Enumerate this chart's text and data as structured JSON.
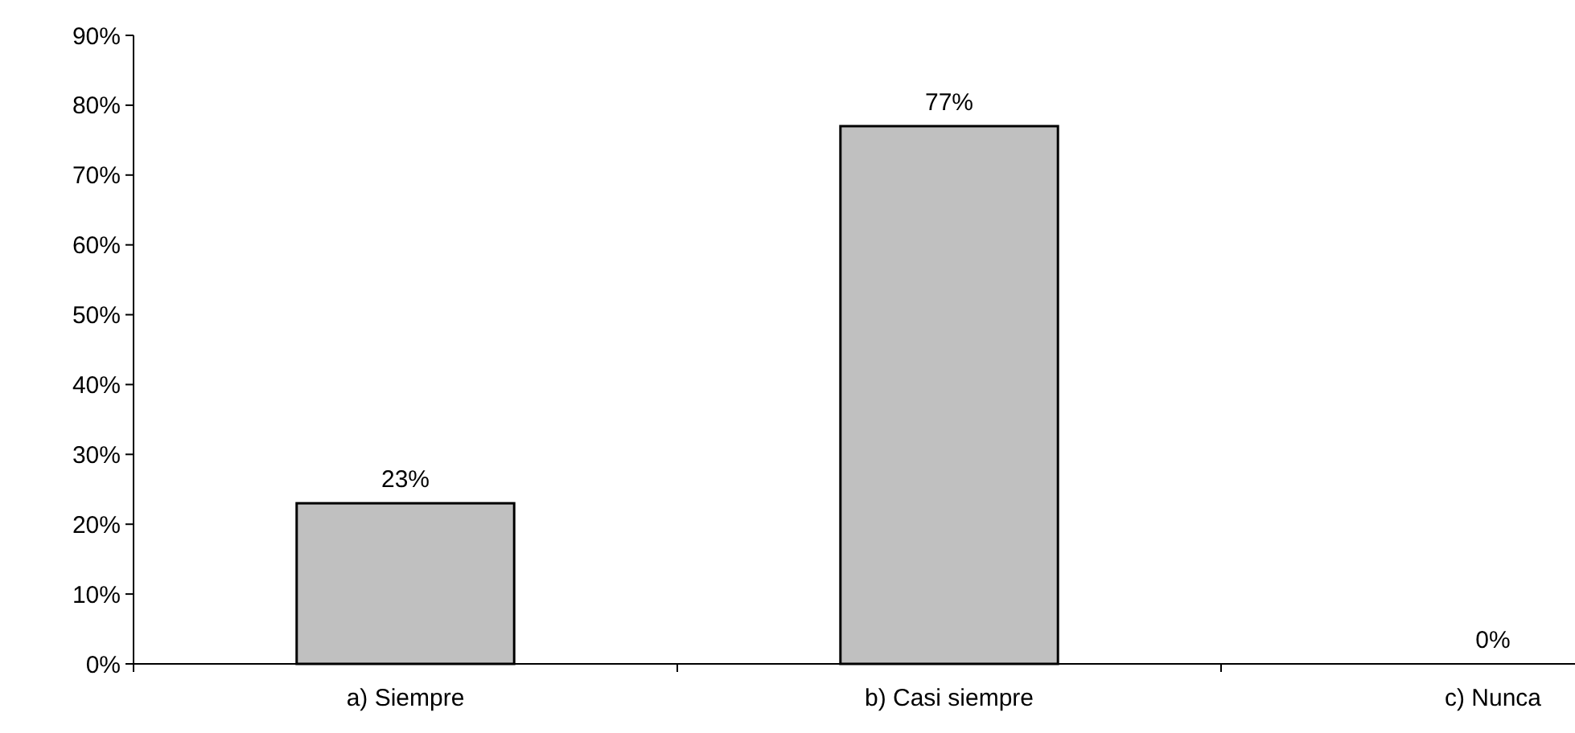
{
  "chart_data": {
    "type": "bar",
    "categories": [
      "a) Siempre",
      "b) Casi siempre",
      "c) Nunca"
    ],
    "values": [
      23,
      77,
      0
    ],
    "color": "#c0c0c0",
    "value_labels": [
      "23%",
      "77%",
      "0%"
    ],
    "ylim": [
      0,
      90
    ],
    "yticks": [
      {
        "value": 0,
        "label": "0%"
      },
      {
        "value": 10,
        "label": "10%"
      },
      {
        "value": 20,
        "label": "20%"
      },
      {
        "value": 30,
        "label": "30%"
      },
      {
        "value": 40,
        "label": "40%"
      },
      {
        "value": 50,
        "label": "50%"
      },
      {
        "value": 60,
        "label": "60%"
      },
      {
        "value": 70,
        "label": "70%"
      },
      {
        "value": 80,
        "label": "80%"
      },
      {
        "value": 90,
        "label": "90%"
      }
    ],
    "grid": false
  }
}
